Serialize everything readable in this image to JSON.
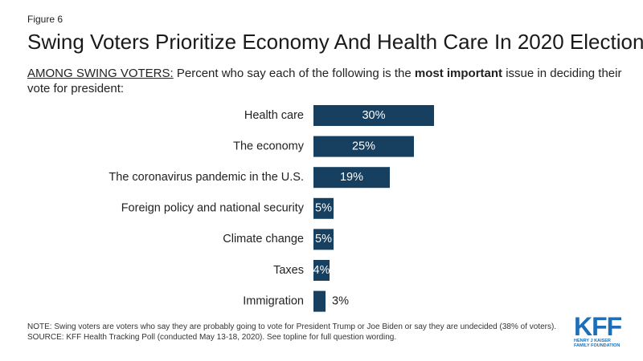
{
  "figure_label": "Figure 6",
  "chart_data": {
    "type": "bar",
    "orientation": "horizontal",
    "title": "Swing Voters Prioritize Economy And Health Care In 2020 Election",
    "subtitle": [
      "AMONG SWING VOTERS:",
      "Percent who say each of the following is the",
      "most important",
      "issue in deciding their vote for president:"
    ],
    "categories": [
      "Health care",
      "The economy",
      "The coronavirus pandemic in the U.S.",
      "Foreign policy and national security",
      "Climate change",
      "Taxes",
      "Immigration"
    ],
    "values": [
      30,
      25,
      19,
      5,
      5,
      4,
      3
    ],
    "value_labels": [
      "30%",
      "25%",
      "19%",
      "5%",
      "5%",
      "4%",
      "3%"
    ],
    "color": "#173f5f"
  },
  "note": "NOTE: Swing voters are voters who say they are probably going to vote for President Trump or Joe Biden or say they are undecided (38% of voters).",
  "source": "SOURCE: KFF Health Tracking Poll (conducted May 13-18, 2020). See topline for full question wording.",
  "logo": {
    "name": "KFF",
    "tagline": [
      "HENRY J KAISER",
      "FAMILY FOUNDATION"
    ]
  }
}
